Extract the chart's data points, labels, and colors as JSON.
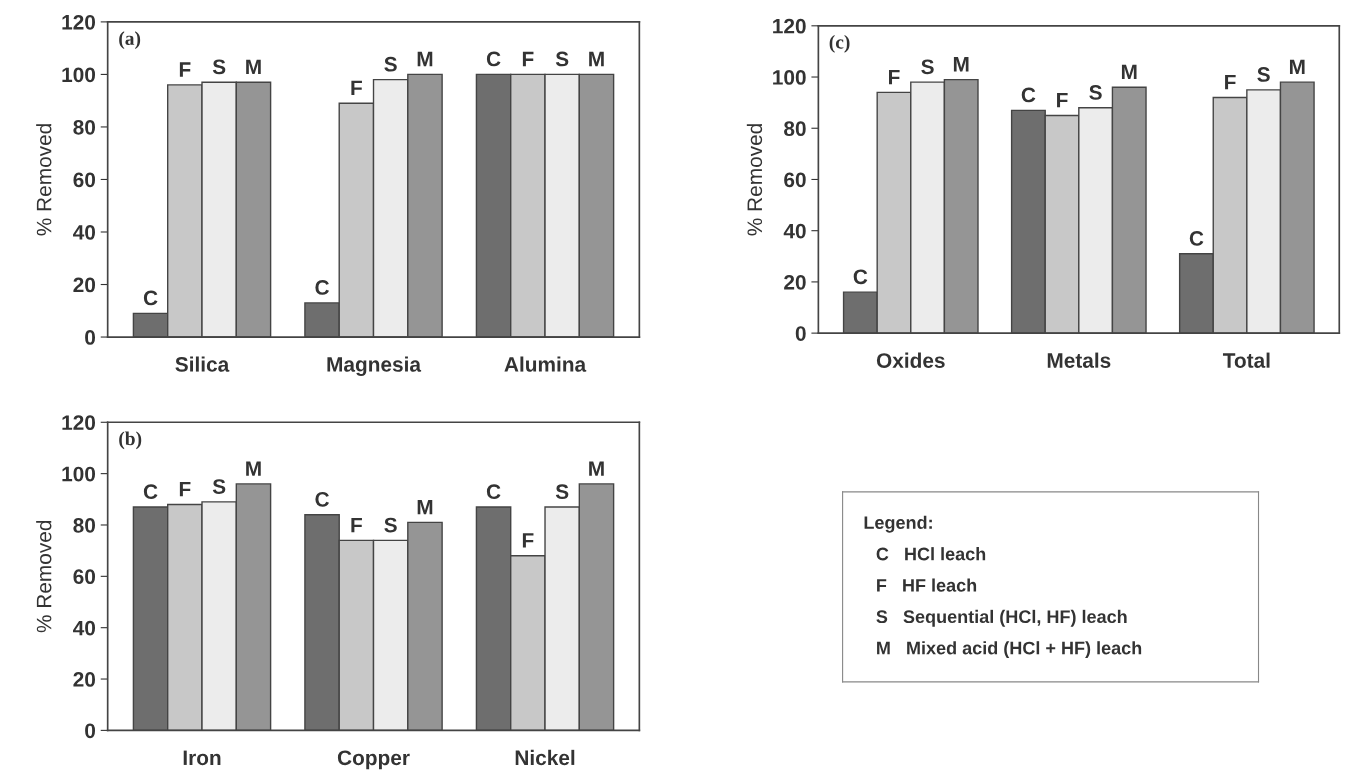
{
  "chart_data": [
    {
      "type": "bar",
      "title": "(a)",
      "ylabel": "% Removed",
      "categories": [
        "Silica",
        "Magnesia",
        "Alumina"
      ],
      "ylim": [
        0,
        120
      ],
      "yticks": [
        0,
        20,
        40,
        60,
        80,
        100,
        120
      ],
      "grid": false,
      "legend": false,
      "series": [
        {
          "name": "C",
          "color": "#6e6e6e",
          "values": [
            9,
            13,
            100
          ]
        },
        {
          "name": "F",
          "color": "#c8c8c8",
          "values": [
            96,
            89,
            100
          ]
        },
        {
          "name": "S",
          "color": "#ececec",
          "values": [
            97,
            98,
            100
          ]
        },
        {
          "name": "M",
          "color": "#959595",
          "values": [
            97,
            100,
            100
          ]
        }
      ]
    },
    {
      "type": "bar",
      "title": "(c)",
      "ylabel": "% Removed",
      "categories": [
        "Oxides",
        "Metals",
        "Total"
      ],
      "ylim": [
        0,
        120
      ],
      "yticks": [
        0,
        20,
        40,
        60,
        80,
        100,
        120
      ],
      "grid": false,
      "legend": false,
      "series": [
        {
          "name": "C",
          "color": "#6e6e6e",
          "values": [
            16,
            87,
            31
          ]
        },
        {
          "name": "F",
          "color": "#c8c8c8",
          "values": [
            94,
            85,
            92
          ]
        },
        {
          "name": "S",
          "color": "#ececec",
          "values": [
            98,
            88,
            95
          ]
        },
        {
          "name": "M",
          "color": "#959595",
          "values": [
            99,
            96,
            98
          ]
        }
      ]
    },
    {
      "type": "bar",
      "title": "(b)",
      "ylabel": "% Removed",
      "categories": [
        "Iron",
        "Copper",
        "Nickel"
      ],
      "ylim": [
        0,
        120
      ],
      "yticks": [
        0,
        20,
        40,
        60,
        80,
        100,
        120
      ],
      "grid": false,
      "legend": false,
      "series": [
        {
          "name": "C",
          "color": "#6e6e6e",
          "values": [
            87,
            84,
            87
          ]
        },
        {
          "name": "F",
          "color": "#c8c8c8",
          "values": [
            88,
            74,
            68
          ]
        },
        {
          "name": "S",
          "color": "#ececec",
          "values": [
            89,
            74,
            87
          ]
        },
        {
          "name": "M",
          "color": "#959595",
          "values": [
            96,
            81,
            96
          ]
        }
      ]
    },
    {
      "type": "other",
      "title": "Legend:",
      "annotations": [
        "C   HCl leach",
        "F   HF leach",
        "S   Sequential (HCl, HF) leach",
        "M   Mixed acid (HCl + HF) leach"
      ]
    }
  ]
}
